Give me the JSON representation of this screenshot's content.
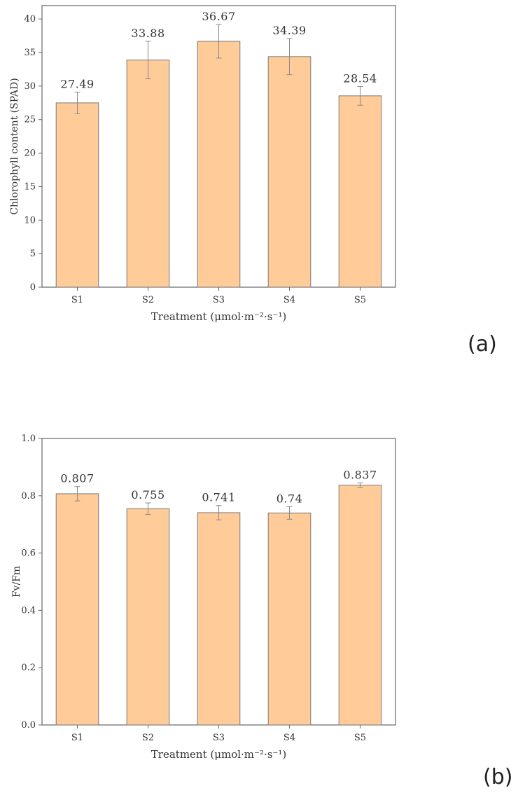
{
  "colors": {
    "bar_fill": "#FFCC99",
    "bar_stroke": "#7a7a7a",
    "axis": "#666666",
    "text": "#333333"
  },
  "chart_data": [
    {
      "type": "bar",
      "panel_label": "(a)",
      "categories": [
        "S1",
        "S2",
        "S3",
        "S4",
        "S5"
      ],
      "values": [
        27.49,
        33.88,
        36.67,
        34.39,
        28.54
      ],
      "errors": [
        1.6,
        2.8,
        2.5,
        2.7,
        1.4
      ],
      "data_labels": [
        "27.49",
        "33.88",
        "36.67",
        "34.39",
        "28.54"
      ],
      "xlabel": "Treatment (μmol·m⁻²·s⁻¹)",
      "ylabel": "Chlorophyll content (SPAD)",
      "ylim": [
        0,
        42
      ],
      "yticks": [
        0,
        5,
        10,
        15,
        20,
        25,
        30,
        35,
        40
      ],
      "ytick_labels": [
        "0",
        "5",
        "10",
        "15",
        "20",
        "25",
        "30",
        "35",
        "40"
      ],
      "grid": false
    },
    {
      "type": "bar",
      "panel_label": "(b)",
      "categories": [
        "S1",
        "S2",
        "S3",
        "S4",
        "S5"
      ],
      "values": [
        0.807,
        0.755,
        0.741,
        0.74,
        0.837
      ],
      "errors": [
        0.025,
        0.02,
        0.025,
        0.022,
        0.008
      ],
      "data_labels": [
        "0.807",
        "0.755",
        "0.741",
        "0.74",
        "0.837"
      ],
      "xlabel": "Treatment (μmol·m⁻²·s⁻¹)",
      "ylabel": "Fv/Fm",
      "ylim": [
        0,
        1.0
      ],
      "yticks": [
        0,
        0.2,
        0.4,
        0.6,
        0.8,
        1.0
      ],
      "ytick_labels": [
        "0.0",
        "0.2",
        "0.4",
        "0.6",
        "0.8",
        "1.0"
      ],
      "grid": false
    }
  ]
}
